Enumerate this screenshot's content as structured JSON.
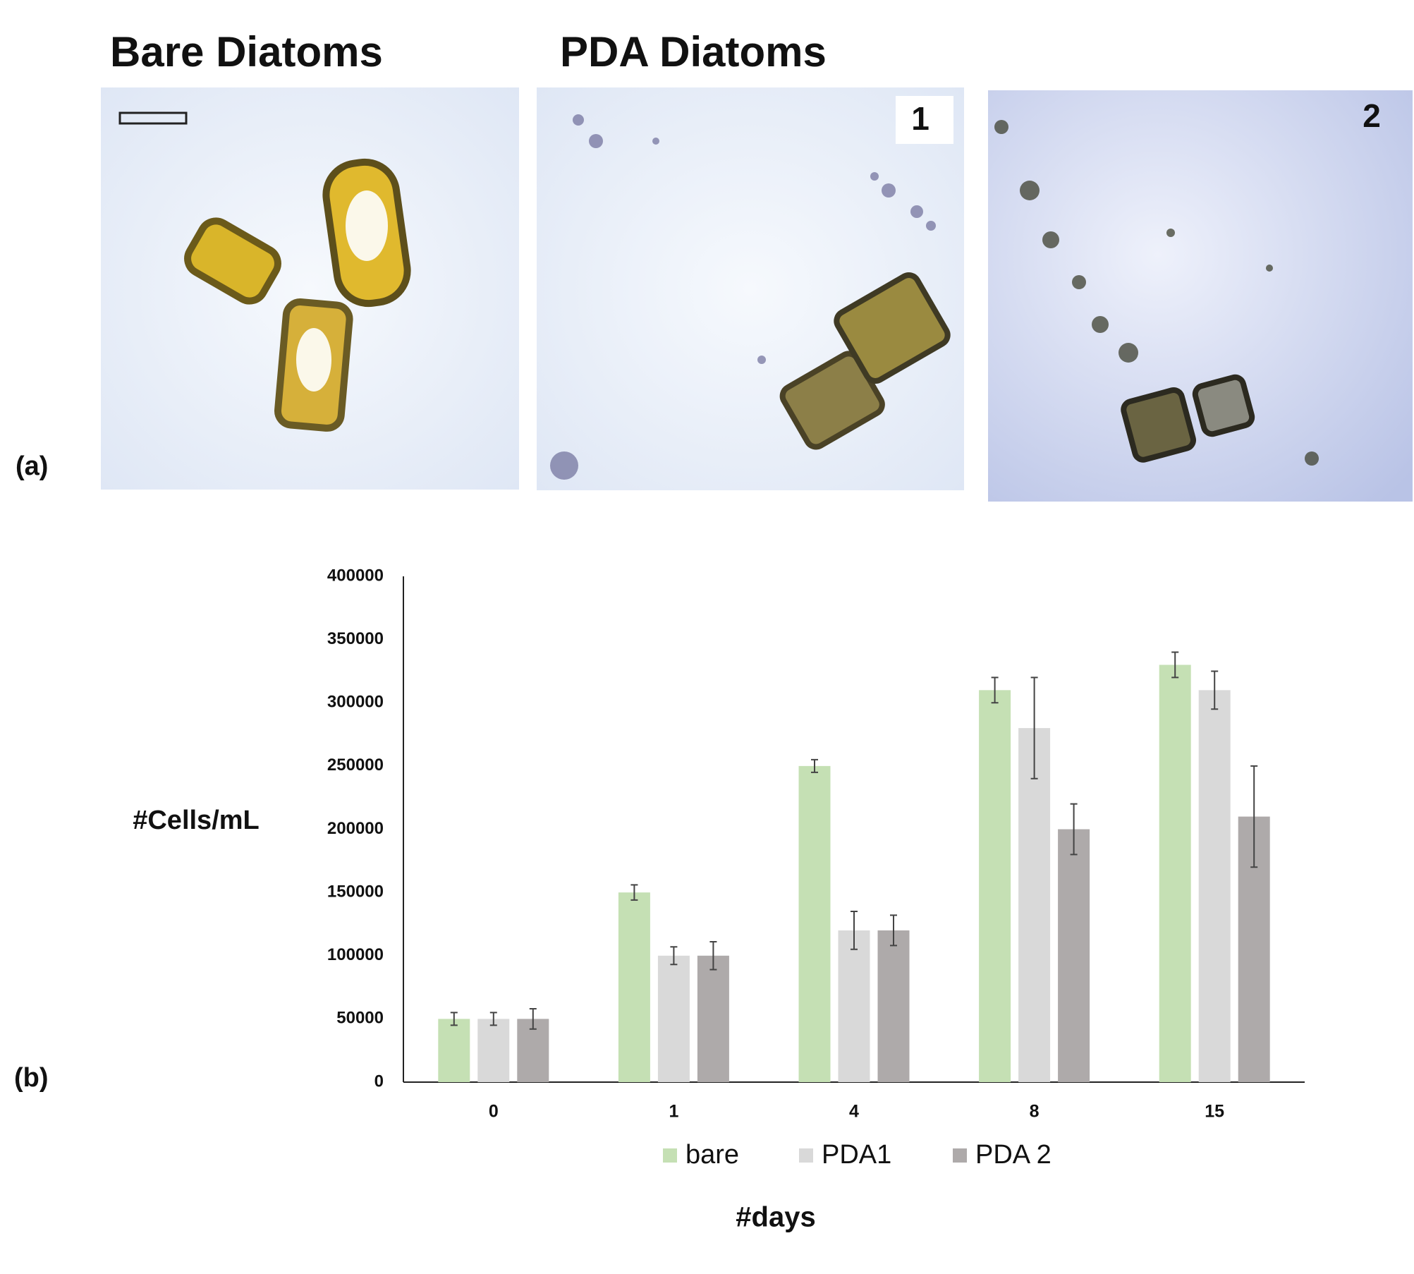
{
  "figure": {
    "panel_a_label": "(a)",
    "panel_b_label": "(b)",
    "bare_title": "Bare Diatoms",
    "pda_title": "PDA Diatoms",
    "image_1_label": "1",
    "image_2_label": "2"
  },
  "chart_data": {
    "type": "bar",
    "y_label": "#Cells/mL",
    "x_label": "#days",
    "categories": [
      "0",
      "1",
      "4",
      "8",
      "15"
    ],
    "series": [
      {
        "name": "bare",
        "color": "#c5e0b4",
        "values": [
          50000,
          150000,
          250000,
          310000,
          330000
        ],
        "errors": [
          5000,
          6000,
          5000,
          10000,
          10000
        ]
      },
      {
        "name": "PDA1",
        "color": "#d9d9d9",
        "values": [
          50000,
          100000,
          120000,
          280000,
          310000
        ],
        "errors": [
          5000,
          7000,
          15000,
          40000,
          15000
        ]
      },
      {
        "name": "PDA 2",
        "color": "#aeaaaa",
        "values": [
          50000,
          100000,
          120000,
          200000,
          210000
        ],
        "errors": [
          8000,
          11000,
          12000,
          20000,
          40000
        ]
      }
    ],
    "ylim": [
      0,
      400000
    ],
    "yticks": [
      0,
      50000,
      100000,
      150000,
      200000,
      250000,
      300000,
      350000,
      400000
    ],
    "grid": false,
    "legend": "bottom"
  }
}
